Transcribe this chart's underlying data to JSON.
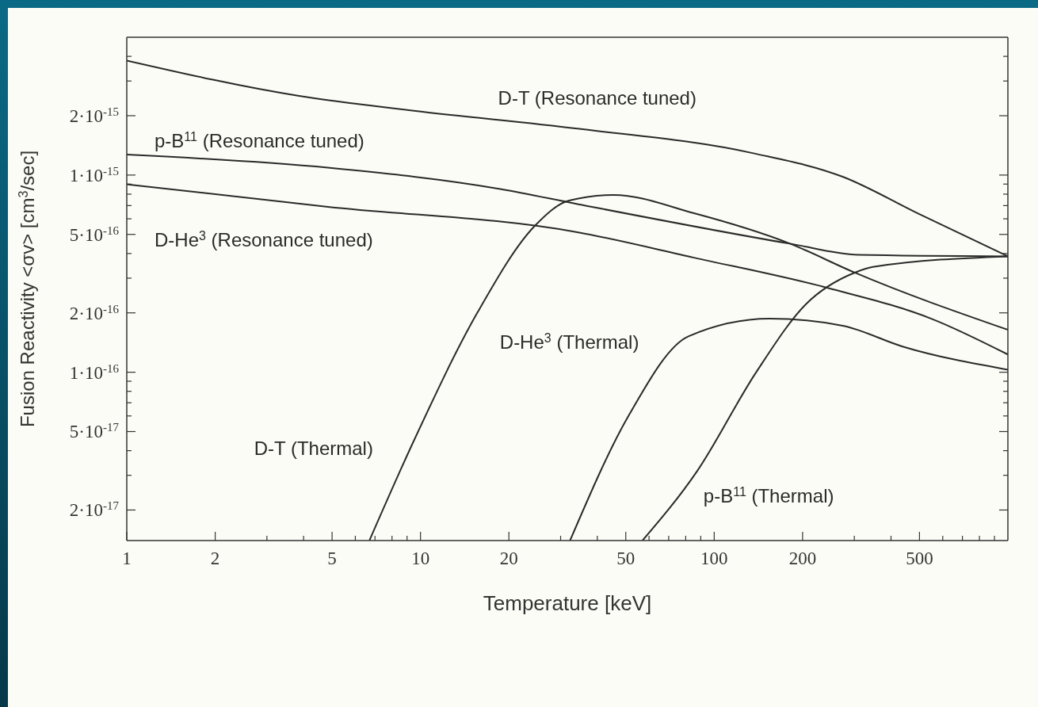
{
  "chart_data": {
    "type": "line",
    "log": "xy",
    "xlabel": "Temperature  [keV]",
    "ylabel": "Fusion Reactivity  <σv>  [cm$^{3}$/sec]",
    "xlim": [
      1,
      1000
    ],
    "ylim": [
      1.4e-17,
      5e-15
    ],
    "xticks": [
      1,
      2,
      {
        "value": 3,
        "label": null
      },
      {
        "value": 4,
        "label": null
      },
      5,
      {
        "value": 6,
        "label": null
      },
      {
        "value": 7,
        "label": null
      },
      {
        "value": 8,
        "label": null
      },
      {
        "value": 9,
        "label": null
      },
      10,
      20,
      {
        "value": 30,
        "label": null
      },
      {
        "value": 40,
        "label": null
      },
      50,
      {
        "value": 60,
        "label": null
      },
      {
        "value": 70,
        "label": null
      },
      {
        "value": 80,
        "label": null
      },
      {
        "value": 90,
        "label": null
      },
      100,
      200,
      {
        "value": 300,
        "label": null
      },
      {
        "value": 400,
        "label": null
      },
      500,
      {
        "value": 600,
        "label": null
      },
      {
        "value": 700,
        "label": null
      },
      {
        "value": 800,
        "label": null
      },
      {
        "value": 900,
        "label": null
      }
    ],
    "yticks": [
      {
        "value": 2e-17,
        "label": "2·10$^{-17}$"
      },
      {
        "value": 3e-17,
        "label": null
      },
      {
        "value": 4e-17,
        "label": null
      },
      {
        "value": 5e-17,
        "label": "5·10$^{-17}$"
      },
      {
        "value": 6e-17,
        "label": null
      },
      {
        "value": 7e-17,
        "label": null
      },
      {
        "value": 8e-17,
        "label": null
      },
      {
        "value": 9e-17,
        "label": null
      },
      {
        "value": 1e-16,
        "label": "1·10$^{-16}$"
      },
      {
        "value": 2e-16,
        "label": "2·10$^{-16}$"
      },
      {
        "value": 3e-16,
        "label": null
      },
      {
        "value": 4e-16,
        "label": null
      },
      {
        "value": 5e-16,
        "label": "5·10$^{-16}$"
      },
      {
        "value": 6e-16,
        "label": null
      },
      {
        "value": 7e-16,
        "label": null
      },
      {
        "value": 8e-16,
        "label": null
      },
      {
        "value": 9e-16,
        "label": null
      },
      {
        "value": 1e-15,
        "label": "1·10$^{-15}$"
      },
      {
        "value": 2e-15,
        "label": "2·10$^{-15}$"
      },
      {
        "value": 3e-15,
        "label": null
      },
      {
        "value": 4e-15,
        "label": null
      }
    ],
    "series": [
      {
        "name": "D-T (Resonance tuned)",
        "color": "#2a2a2a",
        "x": [
          1,
          3.86,
          9.5,
          34.2,
          136,
          274,
          493,
          1000
        ],
        "values": [
          3.81e-15,
          2.52e-15,
          2.12e-15,
          1.72e-15,
          1.29e-15,
          9.8e-16,
          6.4e-16,
          3.87e-16
        ]
      },
      {
        "name": "p-B$^{11}$ (Resonance tuned)",
        "color": "#2a2a2a",
        "x": [
          1,
          4.84,
          18.7,
          34.2,
          181,
          309,
          1000
        ],
        "values": [
          1.27e-15,
          1.09e-15,
          8.5e-16,
          7.13e-16,
          4.49e-16,
          3.94e-16,
          3.87e-16
        ]
      },
      {
        "name": "D-He$^{3}$ (Resonance tuned)",
        "color": "#2a2a2a",
        "x": [
          1,
          4.84,
          34.2,
          85.4,
          245,
          553,
          1000
        ],
        "values": [
          8.98e-16,
          6.9e-16,
          5.13e-16,
          3.81e-16,
          2.67e-16,
          1.86e-16,
          1.23e-16
        ]
      },
      {
        "name": "D-T (Thermal)",
        "color": "#2a2a2a",
        "x": [
          6.7,
          9.4,
          15.7,
          24.5,
          32.1,
          45.5,
          85.4,
          181,
          301,
          1000
        ],
        "values": [
          1.4e-17,
          4.35e-17,
          2.03e-16,
          5.52e-16,
          7.43e-16,
          7.93e-16,
          6.4e-16,
          4.49e-16,
          3.2e-16,
          1.64e-16
        ]
      },
      {
        "name": "D-He$^{3}$ (Thermal)",
        "color": "#2a2a2a",
        "x": [
          32.3,
          51.2,
          81.7,
          154.5,
          274,
          438,
          1000
        ],
        "values": [
          1.4e-17,
          6.04e-17,
          1.52e-16,
          1.87e-16,
          1.72e-16,
          1.35e-16,
          1.03e-16
        ]
      },
      {
        "name": "p-B$^{11}$ (Thermal)",
        "color": "#2a2a2a",
        "x": [
          57,
          87.5,
          139,
          205,
          301,
          347,
          1000
        ],
        "values": [
          1.4e-17,
          3.15e-17,
          1e-16,
          2.21e-16,
          3.2e-16,
          3.42e-16,
          3.87e-16
        ]
      }
    ]
  }
}
